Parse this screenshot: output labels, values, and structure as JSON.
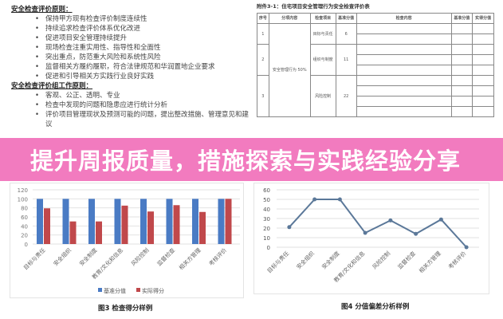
{
  "doc": {
    "heading1": "安全检查评价原则：",
    "bullets1": [
      "保持甲方现有检查评价制度连续性",
      "持续追求检查评价体系优化改进",
      "促进项目安全管理持续提升",
      "现场检查注重实用性、指导性和全面性",
      "突出重点，防范重大风险和系统性风险",
      "监督相关方履约履职，符合法律规范和华润置地企业要求",
      "促进和引导相关方实践行业良好实践"
    ],
    "heading2": "安全检查评价组工作原则：",
    "bullets2": [
      "客观、公正、透明、专业",
      "检查中发现的问题和隐患应进行统计分析",
      "评价项目管理现状及预测可能的问题，提出整改措施、管理意见和建议"
    ]
  },
  "table": {
    "title": "附件3-1：住宅项目安全管理行为安全检查评价表",
    "headers": [
      "序号",
      "分项内容",
      "检查项目",
      "基准分值",
      "检查内容",
      "基准分值",
      "实得分值"
    ],
    "section": "安全管理行为 50%",
    "rows": [
      {
        "no": "1",
        "item": "目标与责任",
        "score": "6"
      },
      {
        "no": "2",
        "item": "组织与制度",
        "score": "11"
      },
      {
        "no": "3",
        "item": "风险控制",
        "score": "22"
      }
    ]
  },
  "banner": {
    "title": "提升周报质量，措施探索与实践经验分享"
  },
  "chart_data": [
    {
      "type": "bar",
      "caption": "图3 检查得分样例",
      "categories": [
        "目标与责任",
        "安全组织",
        "安全制度",
        "教育/文化和信息",
        "风险控制",
        "监督检查",
        "相关方管理",
        "考核评价"
      ],
      "series": [
        {
          "name": "基准分值",
          "values": [
            100,
            100,
            100,
            100,
            100,
            100,
            100,
            100
          ],
          "color": "#4a7bc4"
        },
        {
          "name": "实际得分",
          "values": [
            79,
            50,
            50,
            85,
            72,
            86,
            71,
            100
          ],
          "color": "#c0484b"
        }
      ],
      "ylim": [
        0,
        120
      ],
      "yticks": [
        0,
        20,
        40,
        60,
        80,
        100,
        120
      ],
      "grid": true,
      "legend": "bottom"
    },
    {
      "type": "line",
      "caption": "图4 分值偏差分析样例",
      "categories": [
        "目标与责任",
        "安全组织",
        "安全制度",
        "教育/文化和信息",
        "风险控制",
        "监督检查",
        "相关方管理",
        "考核评价"
      ],
      "series": [
        {
          "values": [
            21,
            50,
            50,
            15,
            28,
            14,
            29,
            0
          ],
          "color": "#5b7899"
        }
      ],
      "ylim": [
        0,
        60
      ],
      "yticks": [
        0,
        10,
        20,
        30,
        40,
        50,
        60
      ],
      "grid": true
    }
  ]
}
